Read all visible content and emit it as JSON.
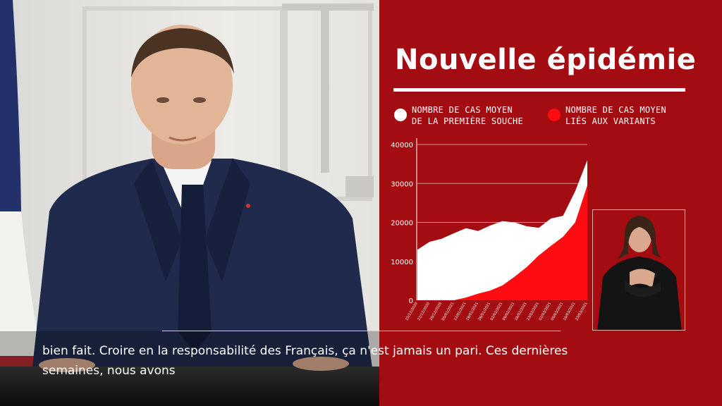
{
  "title": "Nouvelle épidémie",
  "legend": [
    {
      "label": "NOMBRE DE CAS MOYEN\nDE LA PREMIÈRE SOUCHE",
      "color": "#ffffff"
    },
    {
      "label": "NOMBRE DE CAS MOYEN\nLIÉS AUX VARIANTS",
      "color": "#ff0b12"
    }
  ],
  "subtitles": {
    "line1": "bien fait. Croire en la responsabilité des Français, ça n'est jamais un pari. Ces dernières",
    "line2": "semaines, nous avons"
  },
  "chart_data": {
    "type": "area",
    "title": "",
    "xlabel": "",
    "ylabel": "",
    "ylim": [
      0,
      40000
    ],
    "yticks": [
      "0",
      "10000",
      "20000",
      "30000",
      "40000"
    ],
    "grid": true,
    "x": [
      "15/12/2020",
      "22/12/2020",
      "29/12/2020",
      "05/01/2021",
      "12/01/2021",
      "19/01/2021",
      "26/01/2021",
      "02/02/2021",
      "09/02/2021",
      "16/02/2021",
      "23/02/2021",
      "02/03/2021",
      "09/03/2021",
      "16/03/2021",
      "23/03/2021"
    ],
    "series": [
      {
        "name": "NOMBRE DE CAS MOYEN DE LA PREMIÈRE SOUCHE",
        "color": "#ffffff",
        "values": [
          13000,
          15000,
          15800,
          17200,
          18500,
          17800,
          19200,
          20300,
          20000,
          19000,
          18600,
          21000,
          21700,
          28000,
          36000
        ]
      },
      {
        "name": "NOMBRE DE CAS MOYEN LIÉS AUX VARIANTS",
        "color": "#ff0b12",
        "values": [
          0,
          0,
          0,
          0,
          700,
          1700,
          2500,
          3800,
          6000,
          8500,
          11500,
          14000,
          16300,
          20000,
          29500
        ]
      }
    ]
  }
}
